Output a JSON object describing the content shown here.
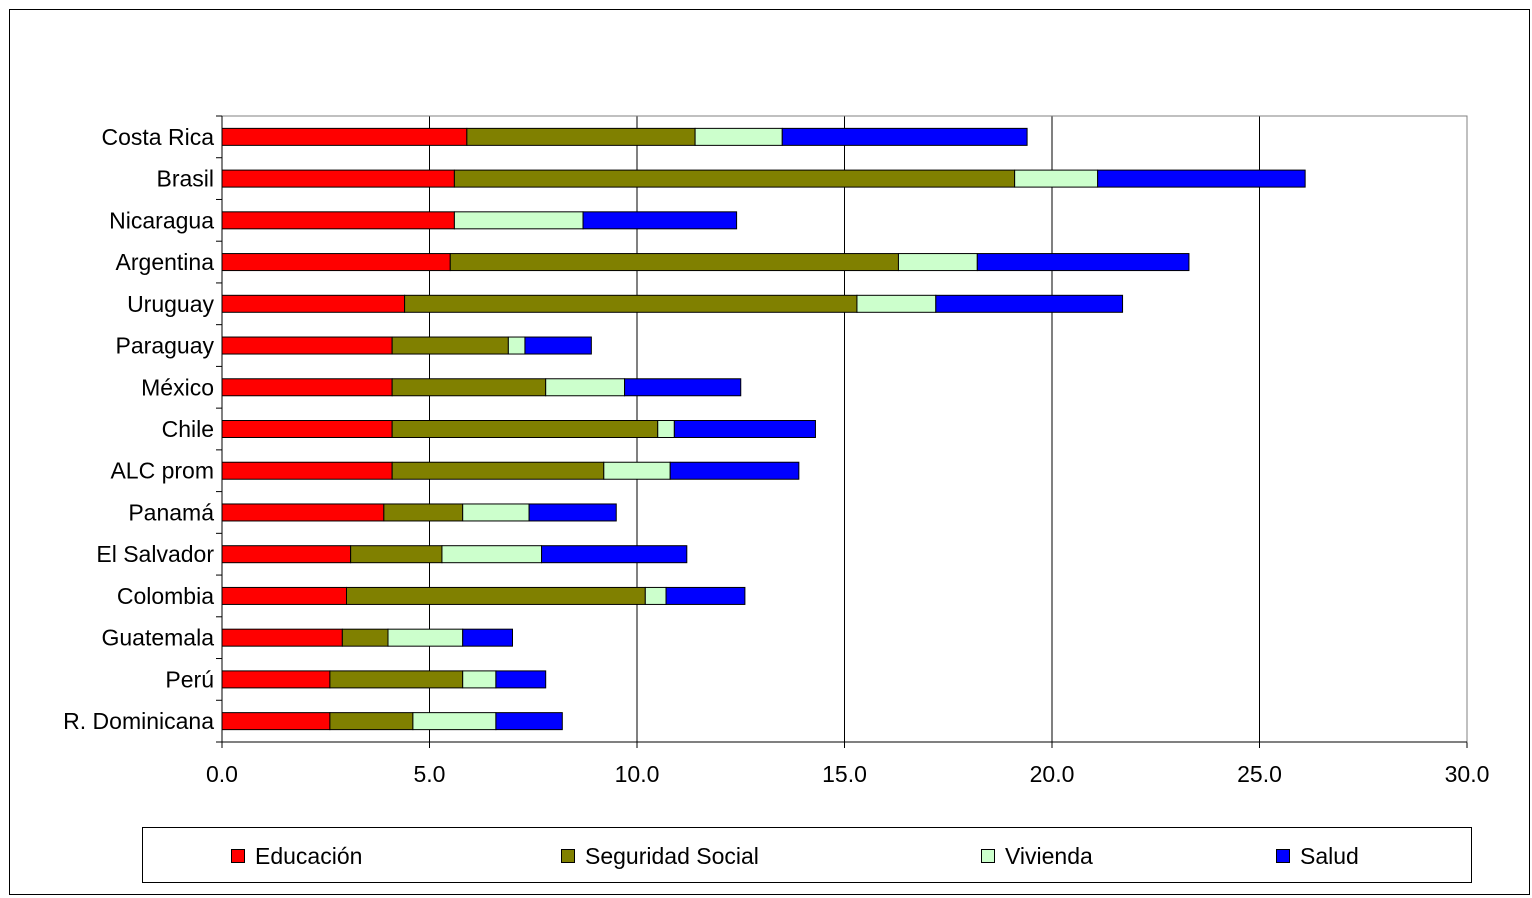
{
  "chart_data": {
    "type": "bar",
    "orientation": "horizontal",
    "stacked": true,
    "title": "",
    "xlabel": "",
    "ylabel": "",
    "xlim": [
      0,
      30
    ],
    "xticks": [
      "0.0",
      "5.0",
      "10.0",
      "15.0",
      "20.0",
      "25.0",
      "30.0"
    ],
    "grid": true,
    "legend_position": "bottom",
    "categories": [
      "Costa Rica",
      "Brasil",
      "Nicaragua",
      "Argentina",
      "Uruguay",
      "Paraguay",
      "México",
      "Chile",
      "ALC prom",
      "Panamá",
      "El Salvador",
      "Colombia",
      "Guatemala",
      "Perú",
      "R. Dominicana"
    ],
    "series": [
      {
        "name": "Educación",
        "color": "#ff0000",
        "values": [
          5.9,
          5.6,
          5.6,
          5.5,
          4.4,
          4.1,
          4.1,
          4.1,
          4.1,
          3.9,
          3.1,
          3.0,
          2.9,
          2.6,
          2.6
        ]
      },
      {
        "name": "Seguridad Social",
        "color": "#808000",
        "values": [
          5.5,
          13.5,
          0.0,
          10.8,
          10.9,
          2.8,
          3.7,
          6.4,
          5.1,
          1.9,
          2.2,
          7.2,
          1.1,
          3.2,
          2.0
        ]
      },
      {
        "name": "Vivienda",
        "color": "#ccffcc",
        "values": [
          2.1,
          2.0,
          3.1,
          1.9,
          1.9,
          0.4,
          1.9,
          0.4,
          1.6,
          1.6,
          2.4,
          0.5,
          1.8,
          0.8,
          2.0
        ]
      },
      {
        "name": "Salud",
        "color": "#0000ff",
        "values": [
          5.9,
          5.0,
          3.7,
          5.1,
          4.5,
          1.6,
          2.8,
          3.4,
          3.1,
          2.1,
          3.5,
          1.9,
          1.2,
          1.2,
          1.6
        ]
      }
    ]
  }
}
